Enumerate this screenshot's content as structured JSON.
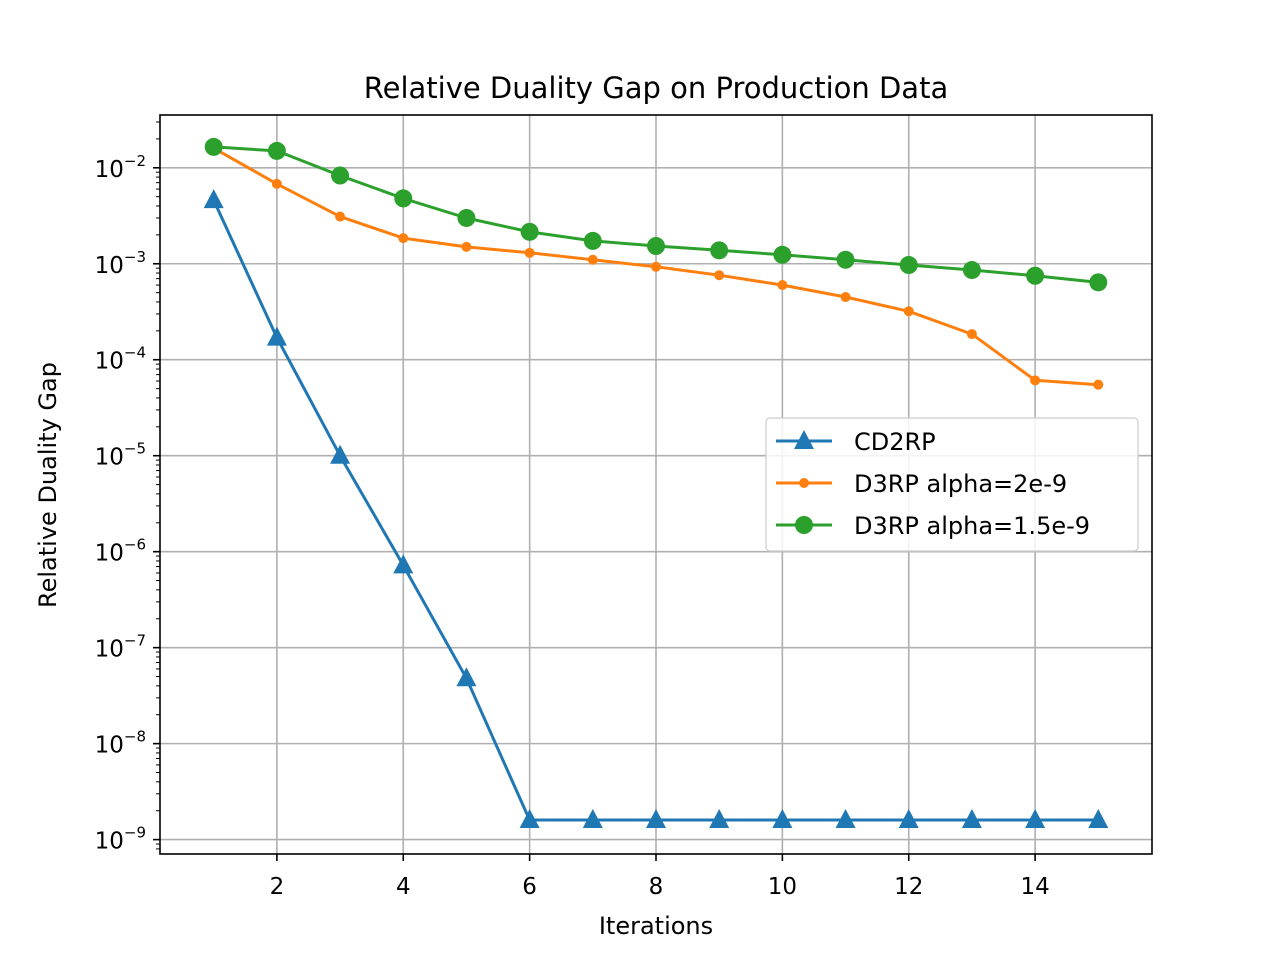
{
  "chart_data": {
    "type": "line",
    "title": "Relative Duality Gap on Production Data",
    "xlabel": "Iterations",
    "ylabel": "Relative Duality Gap",
    "yscale": "log",
    "xlim": [
      0.15,
      15.85
    ],
    "ylim_log10": [
      -9.15,
      -1.45
    ],
    "x_ticks": [
      2,
      4,
      6,
      8,
      10,
      12,
      14
    ],
    "x_tick_labels": [
      "2",
      "4",
      "6",
      "8",
      "10",
      "12",
      "14"
    ],
    "y_ticks": [
      {
        "base": "10",
        "exp": "−2",
        "log": -2
      },
      {
        "base": "10",
        "exp": "−3",
        "log": -3
      },
      {
        "base": "10",
        "exp": "−4",
        "log": -4
      },
      {
        "base": "10",
        "exp": "−5",
        "log": -5
      },
      {
        "base": "10",
        "exp": "−6",
        "log": -6
      },
      {
        "base": "10",
        "exp": "−7",
        "log": -7
      },
      {
        "base": "10",
        "exp": "−8",
        "log": -8
      },
      {
        "base": "10",
        "exp": "−9",
        "log": -9
      }
    ],
    "grid": true,
    "legend_position": "center-right",
    "x": [
      1,
      2,
      3,
      4,
      5,
      6,
      7,
      8,
      9,
      10,
      11,
      12,
      13,
      14,
      15
    ],
    "series": [
      {
        "name": "CD2RP",
        "color": "#1f77b4",
        "marker": "triangle",
        "values": [
          0.0046,
          0.00017,
          1e-05,
          7.2e-07,
          4.8e-08,
          1.6e-09,
          1.6e-09,
          1.6e-09,
          1.6e-09,
          1.6e-09,
          1.6e-09,
          1.6e-09,
          1.6e-09,
          1.6e-09,
          1.6e-09
        ]
      },
      {
        "name": "D3RP alpha=2e-9",
        "color": "#ff7f0e",
        "marker": "small-circle",
        "values": [
          0.016,
          0.0068,
          0.0031,
          0.00185,
          0.0015,
          0.0013,
          0.0011,
          0.00093,
          0.00076,
          0.0006,
          0.00045,
          0.00032,
          0.000185,
          6.1e-05,
          5.5e-05
        ]
      },
      {
        "name": "D3RP alpha=1.5e-9",
        "color": "#2ca02c",
        "marker": "circle",
        "values": [
          0.0165,
          0.015,
          0.0083,
          0.0048,
          0.003,
          0.00215,
          0.00173,
          0.00153,
          0.00138,
          0.00124,
          0.0011,
          0.00097,
          0.00086,
          0.00075,
          0.00064
        ]
      }
    ]
  }
}
